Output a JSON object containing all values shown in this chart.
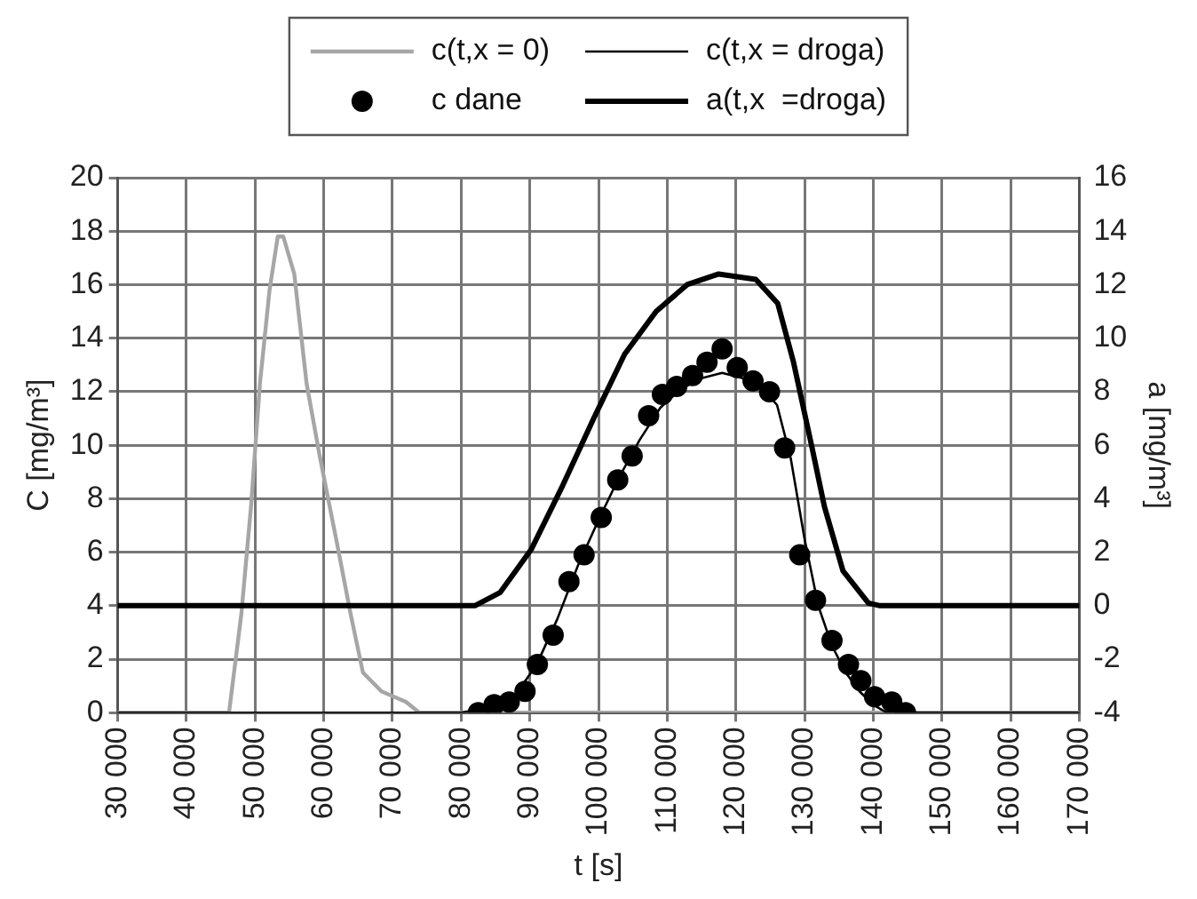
{
  "chart_data": {
    "type": "line",
    "xlabel": "t [s]",
    "ylabel": "C [mg/m³]",
    "y2label": "a [mg/m³]",
    "xlim": [
      30000,
      170000
    ],
    "xticks": [
      {
        "value": 30000,
        "label": "30 000"
      },
      {
        "value": 40000,
        "label": "40 000"
      },
      {
        "value": 50000,
        "label": "50 000"
      },
      {
        "value": 60000,
        "label": "60 000"
      },
      {
        "value": 70000,
        "label": "70 000"
      },
      {
        "value": 80000,
        "label": "80 000"
      },
      {
        "value": 90000,
        "label": "90 000"
      },
      {
        "value": 100000,
        "label": "100 000"
      },
      {
        "value": 110000,
        "label": "110 000"
      },
      {
        "value": 120000,
        "label": "120 000"
      },
      {
        "value": 130000,
        "label": "130 000"
      },
      {
        "value": 140000,
        "label": "140 000"
      },
      {
        "value": 150000,
        "label": "150 000"
      },
      {
        "value": 160000,
        "label": "160 000"
      },
      {
        "value": 170000,
        "label": "170 000"
      }
    ],
    "ylim": [
      0,
      20
    ],
    "yticks": [
      0,
      2,
      4,
      6,
      8,
      10,
      12,
      14,
      16,
      18,
      20
    ],
    "y2lim": [
      -4,
      16
    ],
    "y2ticks": [
      -4,
      -2,
      0,
      2,
      4,
      6,
      8,
      10,
      12,
      14,
      16
    ],
    "grid": true,
    "legend": "top",
    "series": [
      {
        "name": "c(t,x = 0)",
        "color": "#a6a6a6",
        "marker": "none",
        "x": [
          30000,
          46200,
          48000,
          49400,
          50700,
          52100,
          53300,
          54100,
          55700,
          57500,
          59400,
          62100,
          63900,
          65700,
          68400,
          72000,
          73900,
          170000
        ],
        "values": [
          0,
          0,
          3.7,
          7.7,
          12.3,
          15.8,
          17.8,
          17.8,
          16.4,
          12.3,
          9.6,
          6.1,
          3.7,
          1.5,
          0.8,
          0.4,
          0,
          0
        ]
      },
      {
        "name": "c(t,x = droga)",
        "color": "#000000",
        "marker": "none",
        "x": [
          30000,
          80000,
          82000,
          85000,
          88000,
          91000,
          94000,
          97000,
          100000,
          103000,
          106000,
          109000,
          112000,
          115000,
          118000,
          121000,
          124000,
          126000,
          128000,
          130000,
          132000,
          134000,
          136000,
          138000,
          140000,
          142000,
          170000
        ],
        "values": [
          0,
          0,
          0.1,
          0.3,
          0.7,
          1.8,
          3.5,
          5.5,
          7.2,
          8.8,
          10.2,
          11.4,
          12.1,
          12.5,
          12.7,
          12.5,
          12.1,
          11.5,
          9.5,
          6.5,
          4,
          2.5,
          1.5,
          0.8,
          0.3,
          0,
          0
        ]
      },
      {
        "name": "c dane",
        "type": "scatter",
        "color": "#000000",
        "marker": "circle",
        "x": [
          82500,
          84800,
          87000,
          89300,
          91100,
          93400,
          95700,
          97900,
          100400,
          102800,
          104900,
          107300,
          109300,
          111400,
          113700,
          115800,
          118000,
          120200,
          122500,
          124900,
          127100,
          129300,
          131600,
          134000,
          136400,
          138200,
          140200,
          142700,
          144700
        ],
        "values": [
          0,
          0.3,
          0.4,
          0.8,
          1.8,
          2.9,
          4.9,
          5.9,
          7.3,
          8.7,
          9.6,
          11.1,
          11.9,
          12.2,
          12.6,
          13.1,
          13.6,
          12.9,
          12.4,
          12,
          9.9,
          5.9,
          4.2,
          2.7,
          1.8,
          1.2,
          0.6,
          0.4,
          0
        ]
      },
      {
        "name": "a(t,x  =droga)",
        "axis": "y2",
        "color": "#000000",
        "marker": "none",
        "x": [
          30000,
          82000,
          85700,
          90200,
          94800,
          99300,
          103800,
          108400,
          112900,
          117500,
          122900,
          126100,
          128400,
          131100,
          132900,
          135600,
          139300,
          141000,
          170000
        ],
        "values": [
          0,
          0,
          0.5,
          2.1,
          4.5,
          7,
          9.4,
          11,
          12,
          12.4,
          12.2,
          11.3,
          9.1,
          5.9,
          3.7,
          1.3,
          0.1,
          0,
          0
        ]
      }
    ]
  }
}
